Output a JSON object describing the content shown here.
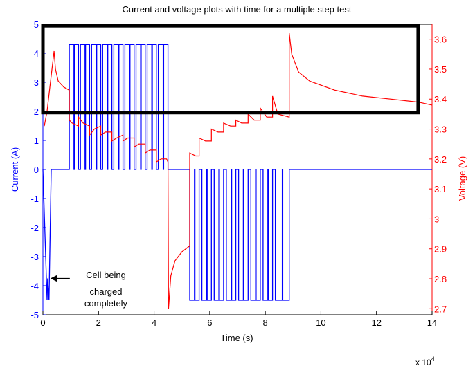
{
  "chart_data": {
    "type": "line",
    "title": "Current and voltage plots with time for a multiple step test",
    "xlabel": "Time (s)",
    "x_multiplier_label": "x 10",
    "x_multiplier_exp": "4",
    "xlim": [
      0,
      14
    ],
    "xticks": [
      "0",
      "2",
      "4",
      "6",
      "8",
      "10",
      "12",
      "14"
    ],
    "y_left": {
      "label": "Current (A)",
      "lim": [
        -5,
        5
      ],
      "ticks": [
        "-5",
        "-4",
        "-3",
        "-2",
        "-1",
        "0",
        "1",
        "2",
        "3",
        "4",
        "5"
      ],
      "color": "#0000ff"
    },
    "y_right": {
      "label": "Voltage (V)",
      "lim": [
        2.68,
        3.65
      ],
      "ticks": [
        "2.7",
        "2.8",
        "2.9",
        "3",
        "3.1",
        "3.2",
        "3.3",
        "3.4",
        "3.5",
        "3.6"
      ],
      "color": "#ff0000"
    },
    "annotation": {
      "lines": [
        "Cell being",
        "charged",
        "completely"
      ],
      "arrow_to": [
        0.17,
        -3.75
      ]
    },
    "highlight_box": {
      "axis": "right",
      "x": [
        0,
        13.5
      ],
      "y": [
        3.355,
        3.645
      ],
      "color": "#000000"
    },
    "series": [
      {
        "axis": "left",
        "color": "#0000ff",
        "charge_segment": {
          "x": [
            0.0,
            0.15,
            0.17,
            0.22,
            0.3
          ],
          "y": [
            0,
            -4.5,
            -3.75,
            -4.5,
            0
          ]
        },
        "baseline_current": 0,
        "pulses": [
          {
            "x": [
              0.95,
              1.28
            ],
            "amplitude": 4.3
          },
          {
            "x": [
              1.35,
              1.68
            ],
            "amplitude": 4.3
          },
          {
            "x": [
              1.75,
              2.08
            ],
            "amplitude": 4.3
          },
          {
            "x": [
              2.15,
              2.48
            ],
            "amplitude": 4.3
          },
          {
            "x": [
              2.55,
              2.88
            ],
            "amplitude": 4.3
          },
          {
            "x": [
              2.95,
              3.28
            ],
            "amplitude": 4.3
          },
          {
            "x": [
              3.35,
              3.68
            ],
            "amplitude": 4.3
          },
          {
            "x": [
              3.75,
              4.08
            ],
            "amplitude": 4.3
          },
          {
            "x": [
              4.15,
              4.5
            ],
            "amplitude": 4.3
          },
          {
            "x": [
              5.28,
              5.62
            ],
            "amplitude": -4.5
          },
          {
            "x": [
              5.72,
              6.06
            ],
            "amplitude": -4.5
          },
          {
            "x": [
              6.16,
              6.5
            ],
            "amplitude": -4.5
          },
          {
            "x": [
              6.6,
              6.94
            ],
            "amplitude": -4.5
          },
          {
            "x": [
              7.04,
              7.38
            ],
            "amplitude": -4.5
          },
          {
            "x": [
              7.48,
              7.82
            ],
            "amplitude": -4.5
          },
          {
            "x": [
              7.92,
              8.26
            ],
            "amplitude": -4.5
          },
          {
            "x": [
              8.36,
              8.86
            ],
            "amplitude": -4.5
          }
        ],
        "xend": 14
      },
      {
        "axis": "right",
        "color": "#ff0000",
        "points": [
          [
            0.05,
            3.31
          ],
          [
            0.15,
            3.36
          ],
          [
            0.4,
            3.56
          ],
          [
            0.45,
            3.5
          ],
          [
            0.55,
            3.46
          ],
          [
            0.75,
            3.44
          ],
          [
            0.95,
            3.43
          ],
          [
            0.95,
            3.33
          ],
          [
            1.05,
            3.32
          ],
          [
            1.28,
            3.31
          ],
          [
            1.28,
            3.34
          ],
          [
            1.45,
            3.32
          ],
          [
            1.68,
            3.31
          ],
          [
            1.68,
            3.28
          ],
          [
            1.85,
            3.3
          ],
          [
            2.08,
            3.31
          ],
          [
            2.08,
            3.28
          ],
          [
            2.25,
            3.29
          ],
          [
            2.48,
            3.29
          ],
          [
            2.48,
            3.26
          ],
          [
            2.65,
            3.27
          ],
          [
            2.88,
            3.28
          ],
          [
            2.88,
            3.26
          ],
          [
            3.05,
            3.27
          ],
          [
            3.28,
            3.27
          ],
          [
            3.28,
            3.24
          ],
          [
            3.45,
            3.25
          ],
          [
            3.68,
            3.25
          ],
          [
            3.68,
            3.22
          ],
          [
            3.85,
            3.23
          ],
          [
            4.08,
            3.23
          ],
          [
            4.08,
            3.19
          ],
          [
            4.25,
            3.2
          ],
          [
            4.45,
            3.2
          ],
          [
            4.5,
            3.19
          ],
          [
            4.52,
            2.7
          ],
          [
            4.6,
            2.81
          ],
          [
            4.75,
            2.86
          ],
          [
            5.0,
            2.89
          ],
          [
            5.28,
            2.91
          ],
          [
            5.28,
            3.22
          ],
          [
            5.5,
            3.21
          ],
          [
            5.62,
            3.21
          ],
          [
            5.62,
            3.27
          ],
          [
            5.85,
            3.26
          ],
          [
            6.06,
            3.26
          ],
          [
            6.06,
            3.3
          ],
          [
            6.3,
            3.29
          ],
          [
            6.5,
            3.29
          ],
          [
            6.5,
            3.32
          ],
          [
            6.75,
            3.31
          ],
          [
            6.94,
            3.31
          ],
          [
            6.94,
            3.33
          ],
          [
            7.15,
            3.32
          ],
          [
            7.38,
            3.32
          ],
          [
            7.38,
            3.35
          ],
          [
            7.6,
            3.33
          ],
          [
            7.82,
            3.33
          ],
          [
            7.82,
            3.37
          ],
          [
            8.05,
            3.34
          ],
          [
            8.26,
            3.34
          ],
          [
            8.26,
            3.41
          ],
          [
            8.45,
            3.35
          ],
          [
            8.86,
            3.34
          ],
          [
            8.86,
            3.62
          ],
          [
            8.95,
            3.55
          ],
          [
            9.2,
            3.49
          ],
          [
            9.6,
            3.46
          ],
          [
            10.5,
            3.43
          ],
          [
            11.5,
            3.41
          ],
          [
            12.5,
            3.4
          ],
          [
            13.5,
            3.39
          ],
          [
            14.0,
            3.38
          ]
        ]
      }
    ]
  }
}
